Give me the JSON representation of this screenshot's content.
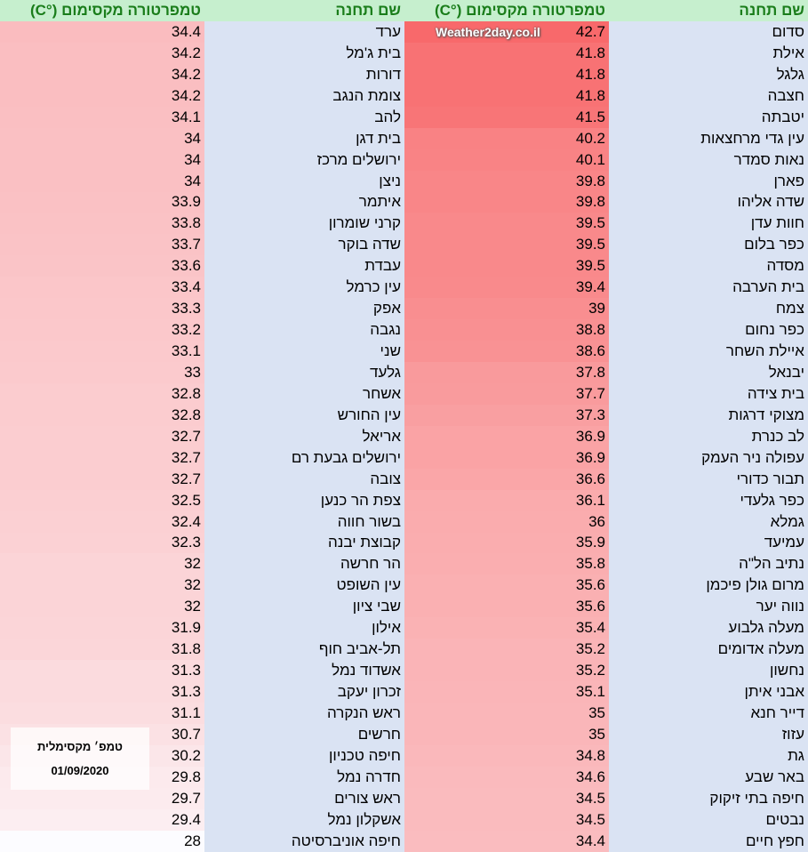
{
  "headers": {
    "station": "שם תחנה",
    "temp": "טמפרטורה מקסימום (°C)"
  },
  "watermark": "Weather2day.co.il",
  "note": {
    "title": "טמפ׳ מקסימלית",
    "date": "01/09/2020"
  },
  "scale": {
    "min_value": 28,
    "max_value": 42.7,
    "min_color": "#fcfcff",
    "max_color": "#f8696b",
    "name_bg": "#dae3f3",
    "header_bg": "#c6efce",
    "header_text": "#1a7d1a"
  },
  "right_block": [
    [
      "סדום",
      "42.7"
    ],
    [
      "אילת",
      "41.8"
    ],
    [
      "גלגל",
      "41.8"
    ],
    [
      "חצבה",
      "41.8"
    ],
    [
      "יטבתה",
      "41.5"
    ],
    [
      "עין גדי מרחצאות",
      "40.2"
    ],
    [
      "נאות סמדר",
      "40.1"
    ],
    [
      "פארן",
      "39.8"
    ],
    [
      "שדה אליהו",
      "39.8"
    ],
    [
      "חוות עדן",
      "39.5"
    ],
    [
      "כפר בלום",
      "39.5"
    ],
    [
      "מסדה",
      "39.5"
    ],
    [
      "בית הערבה",
      "39.4"
    ],
    [
      "צמח",
      "39"
    ],
    [
      "כפר נחום",
      "38.8"
    ],
    [
      "איילת השחר",
      "38.6"
    ],
    [
      "יבנאל",
      "37.8"
    ],
    [
      "בית צידה",
      "37.7"
    ],
    [
      "מצוקי דרגות",
      "37.3"
    ],
    [
      "לב כנרת",
      "36.9"
    ],
    [
      "עפולה ניר העמק",
      "36.9"
    ],
    [
      "תבור כדורי",
      "36.6"
    ],
    [
      "כפר גלעדי",
      "36.1"
    ],
    [
      "גמלא",
      "36"
    ],
    [
      "עמיעד",
      "35.9"
    ],
    [
      "נתיב הל\"ה",
      "35.8"
    ],
    [
      "מרום גולן פיכמן",
      "35.6"
    ],
    [
      "נווה יער",
      "35.6"
    ],
    [
      "מעלה גלבוע",
      "35.4"
    ],
    [
      "מעלה אדומים",
      "35.2"
    ],
    [
      "נחשון",
      "35.2"
    ],
    [
      "אבני איתן",
      "35.1"
    ],
    [
      "דייר חנא",
      "35"
    ],
    [
      "עזוז",
      "35"
    ],
    [
      "גת",
      "34.8"
    ],
    [
      "באר שבע",
      "34.6"
    ],
    [
      "חיפה בתי זיקוק",
      "34.5"
    ],
    [
      "נבטים",
      "34.5"
    ],
    [
      "חפץ חיים",
      "34.4"
    ]
  ],
  "left_block": [
    [
      "ערד",
      "34.4"
    ],
    [
      "בית ג'מל",
      "34.2"
    ],
    [
      "דורות",
      "34.2"
    ],
    [
      "צומת הנגב",
      "34.2"
    ],
    [
      "להב",
      "34.1"
    ],
    [
      "בית דגן",
      "34"
    ],
    [
      "ירושלים מרכז",
      "34"
    ],
    [
      "ניצן",
      "34"
    ],
    [
      "איתמר",
      "33.9"
    ],
    [
      "קרני שומרון",
      "33.8"
    ],
    [
      "שדה בוקר",
      "33.7"
    ],
    [
      "עבדת",
      "33.6"
    ],
    [
      "עין כרמל",
      "33.4"
    ],
    [
      "אפק",
      "33.3"
    ],
    [
      "נגבה",
      "33.2"
    ],
    [
      "שני",
      "33.1"
    ],
    [
      "גלעד",
      "33"
    ],
    [
      "אשחר",
      "32.8"
    ],
    [
      "עין החורש",
      "32.8"
    ],
    [
      "אריאל",
      "32.7"
    ],
    [
      "ירושלים גבעת רם",
      "32.7"
    ],
    [
      "צובה",
      "32.7"
    ],
    [
      "צפת הר כנען",
      "32.5"
    ],
    [
      "בשור חווה",
      "32.4"
    ],
    [
      "קבוצת יבנה",
      "32.3"
    ],
    [
      "הר חרשה",
      "32"
    ],
    [
      "עין השופט",
      "32"
    ],
    [
      "שבי ציון",
      "32"
    ],
    [
      "אילון",
      "31.9"
    ],
    [
      "תל-אביב חוף",
      "31.8"
    ],
    [
      "אשדוד נמל",
      "31.3"
    ],
    [
      "זכרון יעקב",
      "31.3"
    ],
    [
      "ראש הנקרה",
      "31.1"
    ],
    [
      "חרשים",
      "30.7"
    ],
    [
      "חיפה טכניון",
      "30.2"
    ],
    [
      "חדרה נמל",
      "29.8"
    ],
    [
      "ראש צורים",
      "29.7"
    ],
    [
      "אשקלון נמל",
      "29.4"
    ],
    [
      "חיפה אוניברסיטה",
      "28"
    ]
  ]
}
